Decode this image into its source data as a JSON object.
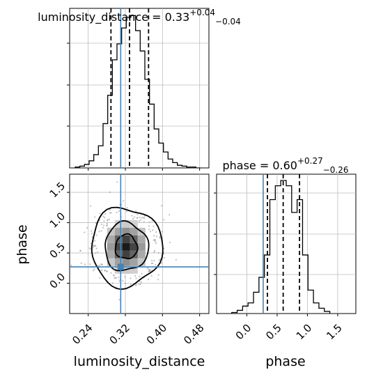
{
  "chart_data": [
    {
      "type": "histogram",
      "panel": "top-left",
      "title": {
        "param": "luminosity_distance",
        "median": "0.33",
        "err_plus": "+0.04",
        "err_minus": "−0.04"
      },
      "x_range": [
        0.2,
        0.5
      ],
      "bin_edges": [
        0.212,
        0.222,
        0.232,
        0.242,
        0.252,
        0.262,
        0.272,
        0.282,
        0.292,
        0.302,
        0.312,
        0.322,
        0.332,
        0.342,
        0.352,
        0.362,
        0.372,
        0.382,
        0.392,
        0.402,
        0.412,
        0.422,
        0.432,
        0.442,
        0.452,
        0.462,
        0.472,
        0.482
      ],
      "counts": [
        1,
        2,
        4,
        8,
        15,
        25,
        50,
        82,
        122,
        140,
        158,
        170,
        172,
        155,
        132,
        100,
        72,
        44,
        28,
        18,
        10,
        6,
        3,
        2,
        1,
        1,
        0
      ],
      "quantile_lines": [
        0.289,
        0.329,
        0.37
      ],
      "truth": 0.31,
      "line_color": "#000000",
      "truth_color": "#4682b4"
    },
    {
      "type": "histogram",
      "panel": "bottom-right",
      "title": {
        "param": "phase",
        "median": "0.60",
        "err_plus": "+0.27",
        "err_minus": "−0.26"
      },
      "x_range": [
        -0.5,
        1.8
      ],
      "x_ticks": [
        "0.0",
        "0.5",
        "1.0",
        "1.5"
      ],
      "xlabel": "phase",
      "bin_edges": [
        -0.25,
        -0.16,
        -0.07,
        0.02,
        0.11,
        0.2,
        0.29,
        0.38,
        0.47,
        0.56,
        0.65,
        0.74,
        0.83,
        0.92,
        1.01,
        1.1,
        1.19,
        1.28,
        1.37
      ],
      "counts": [
        1,
        3,
        7,
        10,
        20,
        34,
        55,
        107,
        120,
        125,
        120,
        95,
        107,
        55,
        22,
        10,
        5,
        2
      ],
      "quantile_lines": [
        0.34,
        0.6,
        0.87
      ],
      "truth": 0.27,
      "line_color": "#000000",
      "truth_color": "#4682b4"
    },
    {
      "type": "2d-density-contour",
      "panel": "bottom-left",
      "x_range": [
        0.2,
        0.5
      ],
      "y_range": [
        -0.5,
        1.8
      ],
      "x_ticks": [
        "0.24",
        "0.32",
        "0.40",
        "0.48"
      ],
      "y_ticks": [
        "0.0",
        "0.5",
        "1.0",
        "1.5"
      ],
      "xlabel": "luminosity_distance",
      "ylabel": "phase",
      "peak": [
        0.322,
        0.6
      ],
      "spread": [
        0.034,
        0.28
      ],
      "truth": [
        0.31,
        0.27
      ],
      "truth_color": "#4682b4"
    }
  ]
}
